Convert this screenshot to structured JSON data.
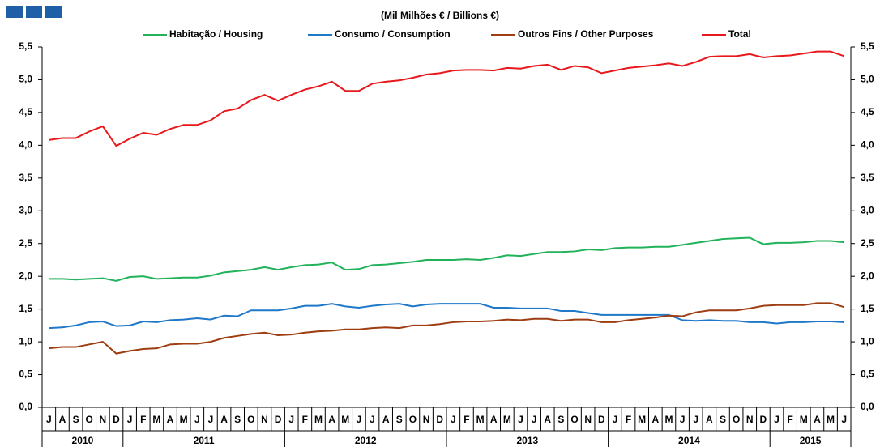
{
  "chart_data": {
    "type": "line",
    "subtitle": "(Mil Milhões € / Billions €)",
    "categories": [
      "J",
      "A",
      "S",
      "O",
      "N",
      "D",
      "J",
      "F",
      "M",
      "A",
      "M",
      "J",
      "J",
      "A",
      "S",
      "O",
      "N",
      "D",
      "J",
      "F",
      "M",
      "A",
      "M",
      "J",
      "J",
      "A",
      "S",
      "O",
      "N",
      "D",
      "J",
      "F",
      "M",
      "A",
      "M",
      "J",
      "J",
      "A",
      "S",
      "O",
      "N",
      "D",
      "J",
      "F",
      "M",
      "A",
      "M",
      "J",
      "J",
      "A",
      "S",
      "O",
      "N",
      "D",
      "J",
      "F",
      "M",
      "A",
      "M",
      "J"
    ],
    "years": [
      "2010",
      "2011",
      "2012",
      "2013",
      "2014",
      "2015"
    ],
    "series": [
      {
        "name": "Habitação / Housing",
        "color": "#21b25a",
        "values": [
          1.96,
          1.96,
          1.95,
          1.96,
          1.97,
          1.93,
          1.99,
          2.0,
          1.96,
          1.97,
          1.98,
          1.98,
          2.01,
          2.06,
          2.08,
          2.1,
          2.14,
          2.1,
          2.14,
          2.17,
          2.18,
          2.21,
          2.1,
          2.11,
          2.17,
          2.18,
          2.2,
          2.22,
          2.25,
          2.25,
          2.25,
          2.26,
          2.25,
          2.28,
          2.32,
          2.31,
          2.34,
          2.37,
          2.37,
          2.38,
          2.41,
          2.4,
          2.43,
          2.44,
          2.44,
          2.45,
          2.45,
          2.48,
          2.51,
          2.54,
          2.57,
          2.58,
          2.59,
          2.49,
          2.51,
          2.51,
          2.52,
          2.54,
          2.54,
          2.52
        ]
      },
      {
        "name": "Consumo / Consumption",
        "color": "#1f78c8",
        "values": [
          1.21,
          1.22,
          1.25,
          1.3,
          1.31,
          1.24,
          1.25,
          1.31,
          1.3,
          1.33,
          1.34,
          1.36,
          1.34,
          1.4,
          1.39,
          1.48,
          1.48,
          1.48,
          1.51,
          1.55,
          1.55,
          1.58,
          1.54,
          1.52,
          1.55,
          1.57,
          1.58,
          1.54,
          1.57,
          1.58,
          1.58,
          1.58,
          1.58,
          1.52,
          1.52,
          1.51,
          1.51,
          1.51,
          1.47,
          1.47,
          1.44,
          1.41,
          1.41,
          1.41,
          1.41,
          1.41,
          1.41,
          1.33,
          1.32,
          1.33,
          1.32,
          1.32,
          1.3,
          1.3,
          1.28,
          1.3,
          1.3,
          1.31,
          1.31,
          1.3
        ]
      },
      {
        "name": "Outros Fins / Other Purposes",
        "color": "#9e3d12",
        "values": [
          0.9,
          0.92,
          0.92,
          0.96,
          1.0,
          0.82,
          0.86,
          0.89,
          0.9,
          0.96,
          0.97,
          0.97,
          1.0,
          1.06,
          1.09,
          1.12,
          1.14,
          1.1,
          1.11,
          1.14,
          1.16,
          1.17,
          1.19,
          1.19,
          1.21,
          1.22,
          1.21,
          1.25,
          1.25,
          1.27,
          1.3,
          1.31,
          1.31,
          1.32,
          1.34,
          1.33,
          1.35,
          1.35,
          1.32,
          1.34,
          1.34,
          1.3,
          1.3,
          1.33,
          1.35,
          1.37,
          1.4,
          1.39,
          1.45,
          1.48,
          1.48,
          1.48,
          1.51,
          1.55,
          1.56,
          1.56,
          1.56,
          1.59,
          1.59,
          1.53
        ]
      },
      {
        "name": "Total",
        "color": "#e8191c",
        "values": [
          4.08,
          4.11,
          4.11,
          4.21,
          4.29,
          3.99,
          4.1,
          4.19,
          4.16,
          4.25,
          4.31,
          4.31,
          4.38,
          4.52,
          4.56,
          4.69,
          4.77,
          4.68,
          4.77,
          4.85,
          4.9,
          4.97,
          4.83,
          4.83,
          4.94,
          4.97,
          4.99,
          5.03,
          5.08,
          5.1,
          5.14,
          5.15,
          5.15,
          5.14,
          5.18,
          5.17,
          5.21,
          5.23,
          5.15,
          5.21,
          5.19,
          5.1,
          5.14,
          5.18,
          5.2,
          5.22,
          5.25,
          5.21,
          5.27,
          5.35,
          5.36,
          5.36,
          5.39,
          5.34,
          5.36,
          5.37,
          5.4,
          5.43,
          5.43,
          5.36
        ]
      }
    ],
    "ylim": [
      0,
      5.5
    ],
    "yticks": [
      {
        "value": 0,
        "label": "0,0"
      },
      {
        "value": 0.5,
        "label": "0,5"
      },
      {
        "value": 1,
        "label": "1,0"
      },
      {
        "value": 1.5,
        "label": "1,5"
      },
      {
        "value": 2,
        "label": "2,0"
      },
      {
        "value": 2.5,
        "label": "2,5"
      },
      {
        "value": 3,
        "label": "3,0"
      },
      {
        "value": 3.5,
        "label": "3,5"
      },
      {
        "value": 4,
        "label": "4,0"
      },
      {
        "value": 4.5,
        "label": "4,5"
      },
      {
        "value": 5,
        "label": "5,0"
      },
      {
        "value": 5.5,
        "label": "5,5"
      }
    ],
    "y2lim": [
      0,
      5.5
    ],
    "y2ticks": [
      {
        "value": 0,
        "label": "0,0"
      },
      {
        "value": 0.5,
        "label": "0,5"
      },
      {
        "value": 1,
        "label": "1,0"
      },
      {
        "value": 1.5,
        "label": "1,5"
      },
      {
        "value": 2,
        "label": "2,0"
      },
      {
        "value": 2.5,
        "label": "2,5"
      },
      {
        "value": 3,
        "label": "3,0"
      },
      {
        "value": 3.5,
        "label": "3,5"
      },
      {
        "value": 4,
        "label": "4,0"
      },
      {
        "value": 4.5,
        "label": "4,5"
      },
      {
        "value": 5,
        "label": "5,0"
      },
      {
        "value": 5.5,
        "label": "5,5"
      }
    ],
    "grid": false
  }
}
